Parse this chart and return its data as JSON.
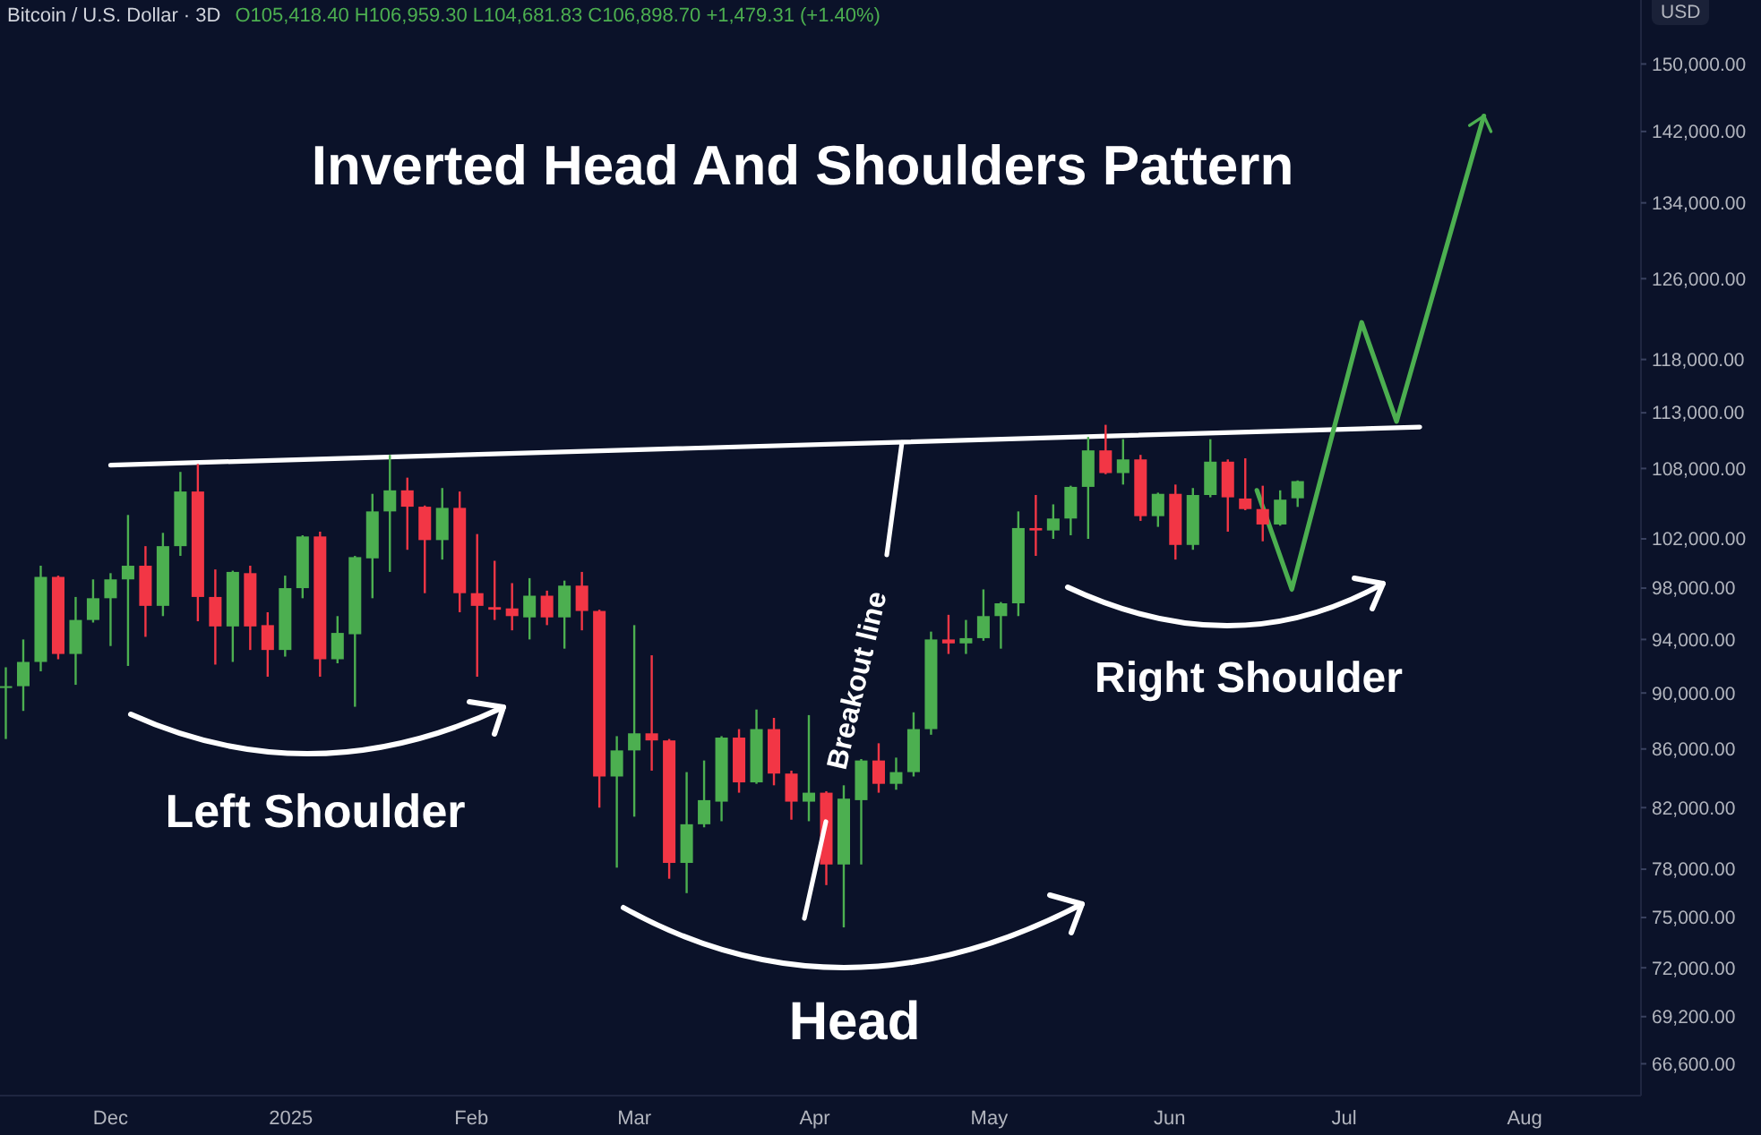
{
  "chart_data": {
    "type": "candlestick",
    "title": "Inverted Head And Shoulders Pattern",
    "subtitle": "Bitcoin / U.S. Dollar · 3D",
    "ylabel": "USD",
    "annotations": [
      "O105,418.40  H106,959.30  L104,681.83  C106,898.70  +1,479.31 (+1.40%)",
      "Left Shoulder",
      "Head",
      "Right Shoulder",
      {
        "text": "Breakout line",
        "x": "2025-04-16",
        "y": 110300
      }
    ],
    "log": true,
    "xlim": [
      "2024-11-12",
      "2025-08-21"
    ],
    "ylim": [
      64900,
      158000
    ],
    "xticks": [
      {
        "value": "2024-12-01",
        "label": "Dec"
      },
      {
        "value": "2025-01-01",
        "label": "2025"
      },
      {
        "value": "2025-02-01",
        "label": "Feb"
      },
      {
        "value": "2025-03-01",
        "label": "Mar"
      },
      {
        "value": "2025-04-01",
        "label": "Apr"
      },
      {
        "value": "2025-05-01",
        "label": "May"
      },
      {
        "value": "2025-06-01",
        "label": "Jun"
      },
      {
        "value": "2025-07-01",
        "label": "Jul"
      },
      {
        "value": "2025-08-01",
        "label": "Aug"
      }
    ],
    "yticks": [
      {
        "value": 66600,
        "label": "66,600.00"
      },
      {
        "value": 69200,
        "label": "69,200.00"
      },
      {
        "value": 72000,
        "label": "72,000.00"
      },
      {
        "value": 75000,
        "label": "75,000.00"
      },
      {
        "value": 78000,
        "label": "78,000.00"
      },
      {
        "value": 82000,
        "label": "82,000.00"
      },
      {
        "value": 86000,
        "label": "86,000.00"
      },
      {
        "value": 90000,
        "label": "90,000.00"
      },
      {
        "value": 94000,
        "label": "94,000.00"
      },
      {
        "value": 98000,
        "label": "98,000.00"
      },
      {
        "value": 102000,
        "label": "102,000.00"
      },
      {
        "value": 108000,
        "label": "108,000.00"
      },
      {
        "value": 113000,
        "label": "113,000.00"
      },
      {
        "value": 118000,
        "label": "118,000.00"
      },
      {
        "value": 126000,
        "label": "126,000.00"
      },
      {
        "value": 134000,
        "label": "134,000.00"
      },
      {
        "value": 142000,
        "label": "142,000.00"
      },
      {
        "value": 150000,
        "label": "150,000.00"
      }
    ],
    "x": [
      "2024-11-13",
      "2024-11-16",
      "2024-11-19",
      "2024-11-22",
      "2024-11-25",
      "2024-11-28",
      "2024-12-01",
      "2024-12-04",
      "2024-12-07",
      "2024-12-10",
      "2024-12-13",
      "2024-12-16",
      "2024-12-19",
      "2024-12-22",
      "2024-12-25",
      "2024-12-28",
      "2024-12-31",
      "2025-01-03",
      "2025-01-06",
      "2025-01-09",
      "2025-01-12",
      "2025-01-15",
      "2025-01-18",
      "2025-01-21",
      "2025-01-24",
      "2025-01-27",
      "2025-01-30",
      "2025-02-02",
      "2025-02-05",
      "2025-02-08",
      "2025-02-11",
      "2025-02-14",
      "2025-02-17",
      "2025-02-20",
      "2025-02-23",
      "2025-02-26",
      "2025-03-01",
      "2025-03-04",
      "2025-03-07",
      "2025-03-10",
      "2025-03-13",
      "2025-03-16",
      "2025-03-19",
      "2025-03-22",
      "2025-03-25",
      "2025-03-28",
      "2025-03-31",
      "2025-04-03",
      "2025-04-06",
      "2025-04-09",
      "2025-04-12",
      "2025-04-15",
      "2025-04-18",
      "2025-04-21",
      "2025-04-24",
      "2025-04-27",
      "2025-04-30",
      "2025-05-03",
      "2025-05-06",
      "2025-05-09",
      "2025-05-12",
      "2025-05-15",
      "2025-05-18",
      "2025-05-21",
      "2025-05-24",
      "2025-05-27",
      "2025-05-30",
      "2025-06-02",
      "2025-06-05",
      "2025-06-08",
      "2025-06-11",
      "2025-06-14",
      "2025-06-17",
      "2025-06-20",
      "2025-06-23"
    ],
    "ohlc": [
      [
        90400,
        91900,
        86700,
        90500
      ],
      [
        90500,
        94000,
        88700,
        92300
      ],
      [
        92300,
        99800,
        91600,
        98900
      ],
      [
        98900,
        99000,
        92500,
        92900
      ],
      [
        92900,
        97300,
        90600,
        95500
      ],
      [
        95500,
        98700,
        95300,
        97200
      ],
      [
        97200,
        99200,
        93500,
        98700
      ],
      [
        98700,
        104000,
        92000,
        99800
      ],
      [
        99800,
        101400,
        94200,
        96600
      ],
      [
        96600,
        102500,
        95800,
        101400
      ],
      [
        101400,
        107700,
        100600,
        106000
      ],
      [
        106000,
        108400,
        95400,
        97300
      ],
      [
        97300,
        99500,
        92100,
        95000
      ],
      [
        95000,
        99400,
        92300,
        99300
      ],
      [
        99200,
        99800,
        93200,
        95000
      ],
      [
        95100,
        96100,
        91200,
        93200
      ],
      [
        93200,
        99000,
        92700,
        98000
      ],
      [
        98000,
        102300,
        97200,
        102200
      ],
      [
        102200,
        102600,
        91200,
        92500
      ],
      [
        92500,
        95800,
        92200,
        94500
      ],
      [
        94400,
        100600,
        89000,
        100500
      ],
      [
        100400,
        105800,
        97200,
        104300
      ],
      [
        104300,
        109200,
        99300,
        106100
      ],
      [
        106100,
        107200,
        101100,
        104700
      ],
      [
        104700,
        104800,
        97600,
        101900
      ],
      [
        101900,
        106300,
        100300,
        104600
      ],
      [
        104600,
        106000,
        96100,
        97600
      ],
      [
        97600,
        102400,
        91200,
        96600
      ],
      [
        96500,
        100200,
        95500,
        96300
      ],
      [
        96400,
        98400,
        94700,
        95800
      ],
      [
        95700,
        98800,
        94000,
        97400
      ],
      [
        97400,
        97800,
        95100,
        95700
      ],
      [
        95700,
        98600,
        93300,
        98200
      ],
      [
        98200,
        99300,
        94700,
        96200
      ],
      [
        96200,
        96300,
        82000,
        84100
      ],
      [
        84100,
        86900,
        78100,
        85900
      ],
      [
        85900,
        95100,
        81400,
        87100
      ],
      [
        87100,
        92800,
        84500,
        86600
      ],
      [
        86600,
        86700,
        77400,
        78400
      ],
      [
        78400,
        84400,
        76500,
        80900
      ],
      [
        80900,
        85200,
        80700,
        82500
      ],
      [
        82400,
        86900,
        81100,
        86800
      ],
      [
        86800,
        87400,
        83000,
        83700
      ],
      [
        83700,
        88800,
        83600,
        87400
      ],
      [
        87400,
        88200,
        83500,
        84300
      ],
      [
        84300,
        84500,
        81200,
        82400
      ],
      [
        82400,
        88400,
        81100,
        83000
      ],
      [
        83000,
        83100,
        77000,
        78300
      ],
      [
        78300,
        83500,
        74400,
        82600
      ],
      [
        82500,
        85300,
        78300,
        85200
      ],
      [
        85200,
        86400,
        83000,
        83600
      ],
      [
        83600,
        85400,
        83200,
        84400
      ],
      [
        84400,
        88600,
        84100,
        87400
      ],
      [
        87400,
        94600,
        87000,
        94000
      ],
      [
        94000,
        95900,
        92900,
        93700
      ],
      [
        93700,
        95500,
        92900,
        94100
      ],
      [
        94100,
        97900,
        93900,
        95800
      ],
      [
        95800,
        96900,
        93300,
        96800
      ],
      [
        96800,
        104300,
        95800,
        102900
      ],
      [
        102900,
        105700,
        100600,
        102700
      ],
      [
        102700,
        104900,
        102000,
        103700
      ],
      [
        103700,
        106500,
        102300,
        106400
      ],
      [
        106400,
        110800,
        102000,
        109600
      ],
      [
        109600,
        111900,
        107500,
        107600
      ],
      [
        107600,
        110600,
        106600,
        108800
      ],
      [
        108800,
        109200,
        103500,
        103900
      ],
      [
        103900,
        105900,
        103000,
        105800
      ],
      [
        105800,
        106600,
        100300,
        101500
      ],
      [
        101500,
        106300,
        101100,
        105700
      ],
      [
        105700,
        110600,
        105500,
        108600
      ],
      [
        108600,
        108800,
        102600,
        105500
      ],
      [
        105400,
        108900,
        104400,
        104500
      ],
      [
        104500,
        106500,
        101800,
        103200
      ],
      [
        103200,
        106100,
        103100,
        105300
      ],
      [
        105418.4,
        106959.3,
        104681.83,
        106898.7
      ]
    ],
    "series": [
      {
        "type": "line",
        "color": "#ffffff",
        "x": [
          "2024-12-01",
          "2025-07-14"
        ],
        "values": [
          108300,
          111700
        ]
      },
      {
        "type": "line",
        "color": "#4caf50",
        "x": [
          "2025-06-16",
          "2025-06-22",
          "2025-07-04",
          "2025-07-10",
          "2025-07-25"
        ],
        "values": [
          106100,
          97900,
          121600,
          112200,
          143800
        ]
      }
    ]
  }
}
